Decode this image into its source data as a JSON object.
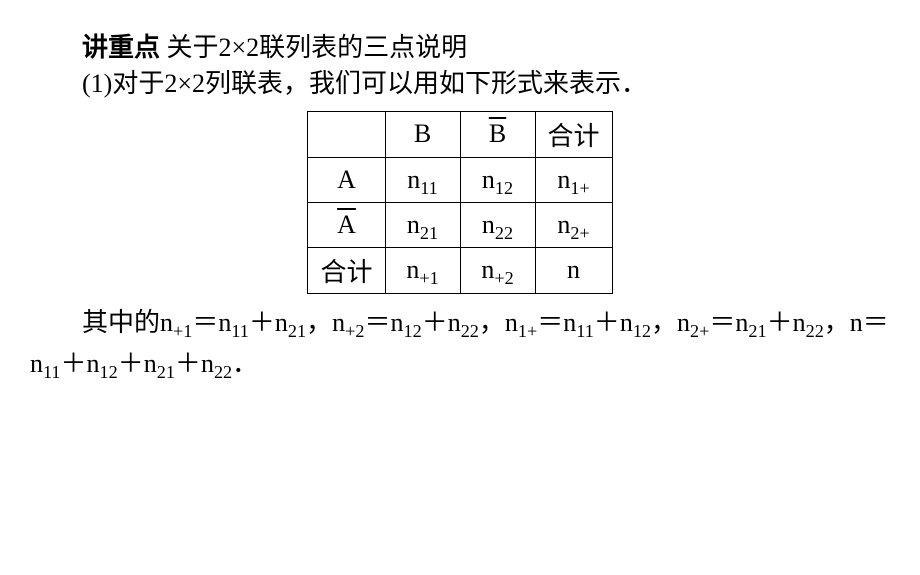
{
  "heading": {
    "bold_label": "讲重点",
    "title": "关于2×2联列表的三点说明"
  },
  "point1": {
    "text": "(1)对于2×2列联表，我们可以用如下形式来表示．"
  },
  "table": {
    "type": "table",
    "columns": [
      "",
      "B",
      "B̄",
      "合计"
    ],
    "rows": [
      {
        "label": "A",
        "c1_base": "n",
        "c1_sub": "11",
        "c2_base": "n",
        "c2_sub": "12",
        "c3_base": "n",
        "c3_sub": "1+"
      },
      {
        "label": "Ā",
        "c1_base": "n",
        "c1_sub": "21",
        "c2_base": "n",
        "c2_sub": "22",
        "c3_base": "n",
        "c3_sub": "2+"
      },
      {
        "label": "合计",
        "c1_base": "n",
        "c1_sub": "+1",
        "c2_base": "n",
        "c2_sub": "+2",
        "c3_base": "n",
        "c3_sub": ""
      }
    ],
    "border_color": "#000000",
    "cell_padding": "4px 12px",
    "font_size": 26,
    "col_B_label": "B",
    "col_Bbar_label": "B",
    "col_total_label": "合计",
    "row_A_label": "A",
    "row_Abar_label": "A",
    "row_total_label": "合计"
  },
  "notation": {
    "n": "n",
    "s11": "11",
    "s12": "12",
    "s21": "21",
    "s22": "22",
    "s1p": "1+",
    "s2p": "2+",
    "sp1": "+1",
    "sp2": "+2"
  },
  "para_cn": {
    "qizhong": "其中的",
    "comma": "，",
    "eq": "＝",
    "plus": "＋",
    "period": "．"
  },
  "style": {
    "background_color": "#ffffff",
    "text_color": "#000000",
    "font_size_main": 26,
    "font_family_cn": "SimSun",
    "font_family_math": "Times New Roman"
  }
}
